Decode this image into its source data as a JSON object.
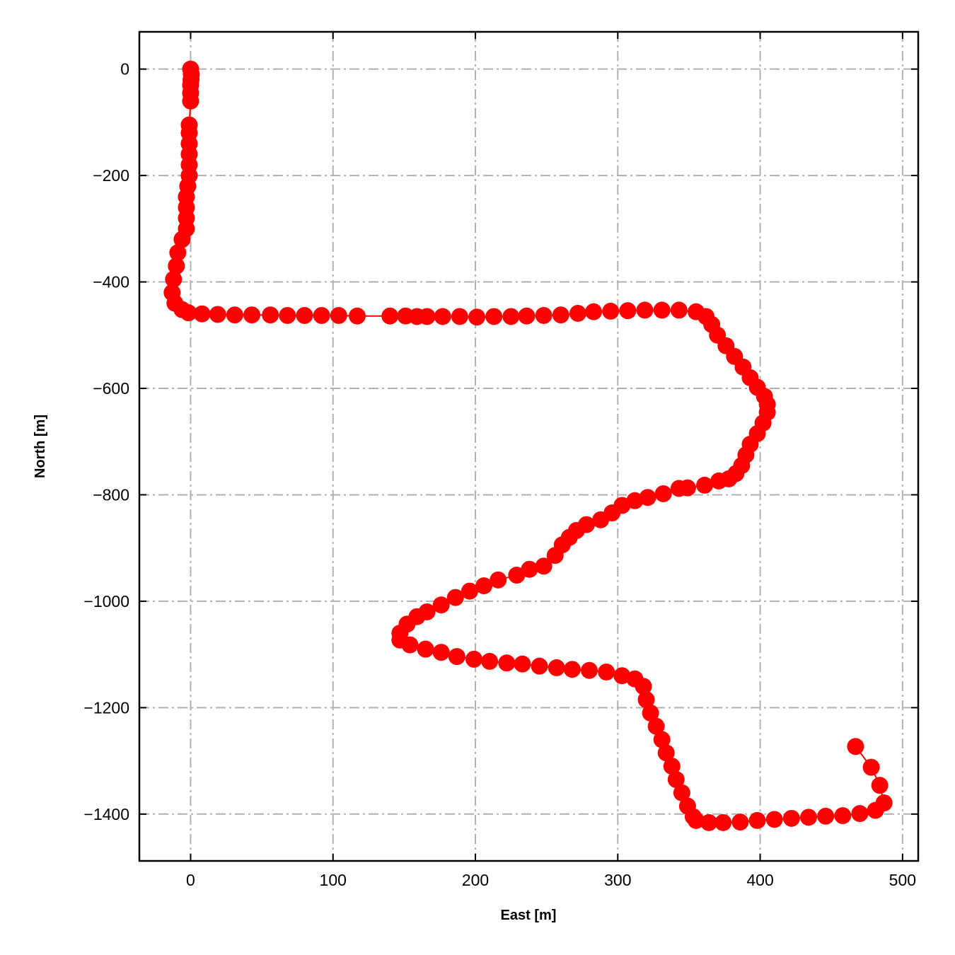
{
  "chart_data": {
    "type": "scatter",
    "title": "",
    "xlabel": "East [m]",
    "ylabel": "North [m]",
    "xlim": [
      -36,
      511
    ],
    "ylim": [
      -1488,
      70
    ],
    "xticks": [
      0,
      100,
      200,
      300,
      400,
      500
    ],
    "yticks": [
      0,
      -200,
      -400,
      -600,
      -800,
      -1000,
      -1200,
      -1400
    ],
    "xtick_labels": [
      "0",
      "100",
      "200",
      "300",
      "400",
      "500"
    ],
    "ytick_labels": [
      "0",
      "−200",
      "−400",
      "−600",
      "−800",
      "−1000",
      "−1200",
      "−1400"
    ],
    "grid": true,
    "grid_style": "dashdot",
    "marker_color": "#ff0000",
    "line_color": "#ff0000",
    "grid_color": "#b0b0b0",
    "points": [
      [
        0,
        0
      ],
      [
        0.5,
        -10
      ],
      [
        0.3,
        -20
      ],
      [
        0,
        -30
      ],
      [
        0,
        -45
      ],
      [
        0,
        -60
      ],
      [
        -1,
        -105
      ],
      [
        -1,
        -120
      ],
      [
        -1,
        -140
      ],
      [
        -1,
        -160
      ],
      [
        -1,
        -180
      ],
      [
        -1,
        -200
      ],
      [
        -2,
        -220
      ],
      [
        -3,
        -240
      ],
      [
        -3,
        -260
      ],
      [
        -3,
        -280
      ],
      [
        -3,
        -300
      ],
      [
        -6,
        -320
      ],
      [
        -9,
        -345
      ],
      [
        -10,
        -370
      ],
      [
        -12,
        -395
      ],
      [
        -13,
        -420
      ],
      [
        -11,
        -440
      ],
      [
        -6,
        -452
      ],
      [
        -1.5,
        -458
      ],
      [
        8,
        -460
      ],
      [
        19,
        -461
      ],
      [
        31,
        -462
      ],
      [
        43,
        -462
      ],
      [
        56,
        -462
      ],
      [
        68,
        -463
      ],
      [
        80,
        -463
      ],
      [
        92,
        -463
      ],
      [
        104,
        -463
      ],
      [
        117,
        -464
      ],
      [
        140,
        -464
      ],
      [
        151,
        -464
      ],
      [
        159,
        -465
      ],
      [
        166,
        -465
      ],
      [
        177,
        -465
      ],
      [
        189,
        -465
      ],
      [
        201,
        -466
      ],
      [
        213,
        -465
      ],
      [
        225,
        -465
      ],
      [
        236,
        -464
      ],
      [
        248,
        -463
      ],
      [
        260,
        -462
      ],
      [
        272,
        -459
      ],
      [
        283,
        -456
      ],
      [
        295,
        -455
      ],
      [
        307,
        -454
      ],
      [
        319,
        -453
      ],
      [
        331,
        -453
      ],
      [
        343,
        -453
      ],
      [
        355,
        -456
      ],
      [
        362,
        -465
      ],
      [
        366,
        -480
      ],
      [
        370,
        -500
      ],
      [
        376,
        -520
      ],
      [
        382,
        -540
      ],
      [
        388,
        -560
      ],
      [
        393,
        -580
      ],
      [
        398,
        -598
      ],
      [
        403,
        -615
      ],
      [
        405,
        -630
      ],
      [
        405,
        -645
      ],
      [
        402,
        -665
      ],
      [
        398,
        -685
      ],
      [
        393,
        -705
      ],
      [
        390,
        -725
      ],
      [
        387,
        -745
      ],
      [
        383,
        -760
      ],
      [
        378,
        -770
      ],
      [
        371,
        -774
      ],
      [
        361,
        -782
      ],
      [
        349,
        -787
      ],
      [
        343,
        -788
      ],
      [
        332,
        -798
      ],
      [
        321,
        -805
      ],
      [
        312,
        -811
      ],
      [
        303,
        -820
      ],
      [
        296,
        -834
      ],
      [
        288,
        -847
      ],
      [
        278,
        -856
      ],
      [
        271,
        -867
      ],
      [
        266,
        -880
      ],
      [
        261,
        -894
      ],
      [
        256,
        -914
      ],
      [
        248,
        -934
      ],
      [
        238,
        -940
      ],
      [
        229,
        -951
      ],
      [
        216,
        -960
      ],
      [
        206,
        -971
      ],
      [
        196,
        -981
      ],
      [
        186,
        -993
      ],
      [
        176,
        -1007
      ],
      [
        166,
        -1020
      ],
      [
        159,
        -1029
      ],
      [
        152,
        -1043
      ],
      [
        147,
        -1060
      ],
      [
        147,
        -1073
      ],
      [
        154,
        -1082
      ],
      [
        165,
        -1090
      ],
      [
        176,
        -1096
      ],
      [
        187,
        -1104
      ],
      [
        199,
        -1109
      ],
      [
        210,
        -1113
      ],
      [
        222,
        -1116
      ],
      [
        233,
        -1118
      ],
      [
        245,
        -1122
      ],
      [
        257,
        -1125
      ],
      [
        268,
        -1128
      ],
      [
        280,
        -1130
      ],
      [
        292,
        -1133
      ],
      [
        303,
        -1140
      ],
      [
        312,
        -1146
      ],
      [
        318,
        -1160
      ],
      [
        320,
        -1185
      ],
      [
        323,
        -1210
      ],
      [
        327,
        -1235
      ],
      [
        331,
        -1260
      ],
      [
        334,
        -1285
      ],
      [
        338,
        -1310
      ],
      [
        341,
        -1335
      ],
      [
        345,
        -1360
      ],
      [
        349,
        -1385
      ],
      [
        353,
        -1405
      ],
      [
        355,
        -1412
      ],
      [
        364,
        -1416
      ],
      [
        374,
        -1416
      ],
      [
        386,
        -1415
      ],
      [
        398,
        -1412
      ],
      [
        410,
        -1410
      ],
      [
        422,
        -1408
      ],
      [
        434,
        -1406
      ],
      [
        446,
        -1404
      ],
      [
        458,
        -1403
      ],
      [
        470,
        -1399
      ],
      [
        481,
        -1393
      ],
      [
        487,
        -1379
      ],
      [
        484,
        -1346
      ],
      [
        478,
        -1312
      ],
      [
        467,
        -1273
      ]
    ]
  }
}
